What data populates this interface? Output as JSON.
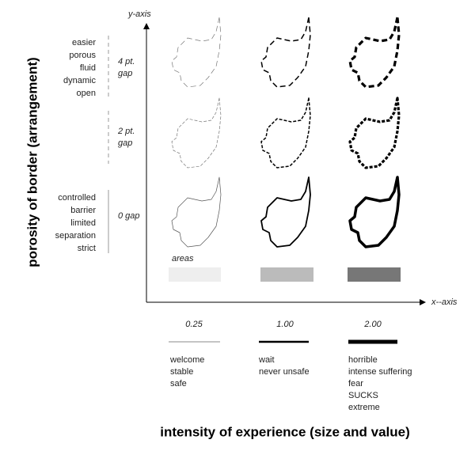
{
  "axes": {
    "y": "y-axis",
    "x": "x--axis"
  },
  "y_title": "porosity of border (arrangement)",
  "x_title": "intensity of experience (size and value)",
  "rows": [
    {
      "descriptors": [
        "easier",
        "porous",
        "fluid",
        "dynamic",
        "open"
      ],
      "gap": [
        "4 pt.",
        "gap"
      ]
    },
    {
      "descriptors": [],
      "gap": [
        "2 pt.",
        "gap"
      ]
    },
    {
      "descriptors": [
        "controlled",
        "barrier",
        "limited",
        "separation",
        "strict"
      ],
      "gap": [
        "0 gap"
      ]
    }
  ],
  "areas_label": "areas",
  "columns": [
    {
      "weight": "0.25",
      "descriptors": [
        "welcome",
        "stable",
        "safe"
      ]
    },
    {
      "weight": "1.00",
      "descriptors": [
        "wait",
        "never unsafe"
      ]
    },
    {
      "weight": "2.00",
      "descriptors": [
        "horrible",
        "intense suffering",
        "fear",
        "SUCKS",
        "extreme"
      ]
    }
  ]
}
